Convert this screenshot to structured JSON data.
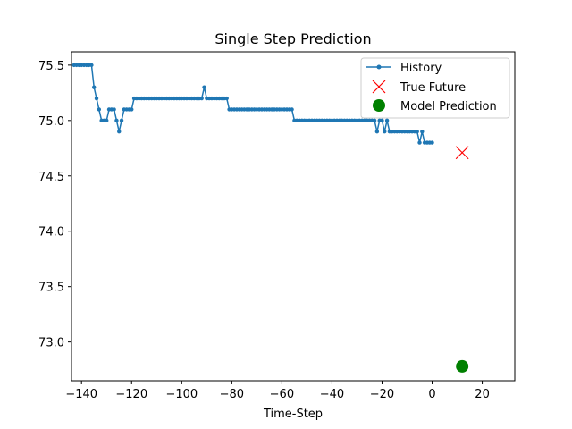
{
  "chart_data": {
    "type": "line",
    "title": "Single Step Prediction",
    "xlabel": "Time-Step",
    "ylabel": "",
    "xlim": [
      -144,
      33
    ],
    "ylim": [
      72.65,
      75.62
    ],
    "xticks": [
      -140,
      -120,
      -100,
      -80,
      -60,
      -40,
      -20,
      0,
      20
    ],
    "yticks": [
      73.0,
      73.5,
      74.0,
      74.5,
      75.0,
      75.5
    ],
    "ytick_labels": [
      "73.0",
      "73.5",
      "74.0",
      "74.5",
      "75.0",
      "75.5"
    ],
    "grid": false,
    "legend_position": "top-right",
    "series": [
      {
        "name": "History",
        "marker": "dot-line",
        "color": "#1f77b4",
        "x": [
          -143,
          -142,
          -141,
          -140,
          -139,
          -138,
          -137,
          -136,
          -135,
          -134,
          -133,
          -132,
          -131,
          -130,
          -129,
          -128,
          -127,
          -126,
          -125,
          -124,
          -123,
          -122,
          -121,
          -120,
          -119,
          -118,
          -117,
          -116,
          -115,
          -114,
          -113,
          -112,
          -111,
          -110,
          -109,
          -108,
          -107,
          -106,
          -105,
          -104,
          -103,
          -102,
          -101,
          -100,
          -99,
          -98,
          -97,
          -96,
          -95,
          -94,
          -93,
          -92,
          -91,
          -90,
          -89,
          -88,
          -87,
          -86,
          -85,
          -84,
          -83,
          -82,
          -81,
          -80,
          -79,
          -78,
          -77,
          -76,
          -75,
          -74,
          -73,
          -72,
          -71,
          -70,
          -69,
          -68,
          -67,
          -66,
          -65,
          -64,
          -63,
          -62,
          -61,
          -60,
          -59,
          -58,
          -57,
          -56,
          -55,
          -54,
          -53,
          -52,
          -51,
          -50,
          -49,
          -48,
          -47,
          -46,
          -45,
          -44,
          -43,
          -42,
          -41,
          -40,
          -39,
          -38,
          -37,
          -36,
          -35,
          -34,
          -33,
          -32,
          -31,
          -30,
          -29,
          -28,
          -27,
          -26,
          -25,
          -24,
          -23,
          -22,
          -21,
          -20,
          -19,
          -18,
          -17,
          -16,
          -15,
          -14,
          -13,
          -12,
          -11,
          -10,
          -9,
          -8,
          -7,
          -6,
          -5,
          -4,
          -3,
          -2,
          -1,
          0
        ],
        "y": [
          75.5,
          75.5,
          75.5,
          75.5,
          75.5,
          75.5,
          75.5,
          75.5,
          75.3,
          75.2,
          75.1,
          75.0,
          75.0,
          75.0,
          75.1,
          75.1,
          75.1,
          75.0,
          74.9,
          75.0,
          75.1,
          75.1,
          75.1,
          75.1,
          75.2,
          75.2,
          75.2,
          75.2,
          75.2,
          75.2,
          75.2,
          75.2,
          75.2,
          75.2,
          75.2,
          75.2,
          75.2,
          75.2,
          75.2,
          75.2,
          75.2,
          75.2,
          75.2,
          75.2,
          75.2,
          75.2,
          75.2,
          75.2,
          75.2,
          75.2,
          75.2,
          75.2,
          75.3,
          75.2,
          75.2,
          75.2,
          75.2,
          75.2,
          75.2,
          75.2,
          75.2,
          75.2,
          75.1,
          75.1,
          75.1,
          75.1,
          75.1,
          75.1,
          75.1,
          75.1,
          75.1,
          75.1,
          75.1,
          75.1,
          75.1,
          75.1,
          75.1,
          75.1,
          75.1,
          75.1,
          75.1,
          75.1,
          75.1,
          75.1,
          75.1,
          75.1,
          75.1,
          75.1,
          75.0,
          75.0,
          75.0,
          75.0,
          75.0,
          75.0,
          75.0,
          75.0,
          75.0,
          75.0,
          75.0,
          75.0,
          75.0,
          75.0,
          75.0,
          75.0,
          75.0,
          75.0,
          75.0,
          75.0,
          75.0,
          75.0,
          75.0,
          75.0,
          75.0,
          75.0,
          75.0,
          75.0,
          75.0,
          75.0,
          75.0,
          75.0,
          75.0,
          74.9,
          75.0,
          75.0,
          74.9,
          75.0,
          74.9,
          74.9,
          74.9,
          74.9,
          74.9,
          74.9,
          74.9,
          74.9,
          74.9,
          74.9,
          74.9,
          74.9,
          74.8,
          74.9,
          74.8,
          74.8,
          74.8,
          74.8
        ]
      },
      {
        "name": "True Future",
        "marker": "x",
        "color": "#ff0000",
        "x": [
          12
        ],
        "y": [
          74.71
        ]
      },
      {
        "name": "Model Prediction",
        "marker": "circle",
        "color": "#008000",
        "x": [
          12
        ],
        "y": [
          72.78
        ]
      }
    ]
  }
}
